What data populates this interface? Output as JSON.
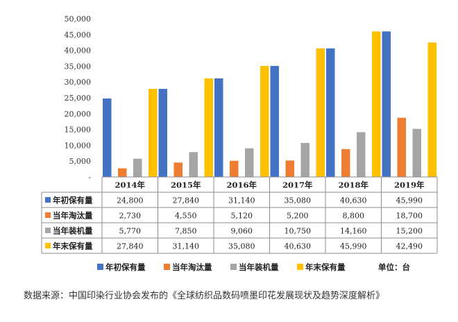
{
  "chart_data": {
    "type": "bar",
    "categories": [
      "2014年",
      "2015年",
      "2016年",
      "2017年",
      "2018年",
      "2019年"
    ],
    "series": [
      {
        "name": "年初保有量",
        "color": "#4472C4",
        "values": [
          24800,
          27840,
          31140,
          35080,
          40630,
          45990
        ],
        "labels": [
          "24,800",
          "27,840",
          "31,140",
          "35,080",
          "40,630",
          "45,990"
        ]
      },
      {
        "name": "当年淘汰量",
        "color": "#ED7D31",
        "values": [
          2730,
          4550,
          5120,
          5200,
          8800,
          18700
        ],
        "labels": [
          "2,730",
          "4,550",
          "5,120",
          "5,200",
          "8,800",
          "18,700"
        ]
      },
      {
        "name": "当年装机量",
        "color": "#A5A5A5",
        "values": [
          5770,
          7850,
          9060,
          10750,
          14160,
          15200
        ],
        "labels": [
          "5,770",
          "7,850",
          "9,060",
          "10,750",
          "14,160",
          "15,200"
        ]
      },
      {
        "name": "年末保有量",
        "color": "#FFC000",
        "values": [
          27840,
          31140,
          35080,
          40630,
          45990,
          42490
        ],
        "labels": [
          "27,840",
          "31,140",
          "35,080",
          "40,630",
          "45,990",
          "42,490"
        ]
      }
    ],
    "ylim": [
      0,
      50000
    ],
    "yticks": [
      "-",
      "5,000",
      "10,000",
      "15,000",
      "20,000",
      "25,000",
      "30,000",
      "35,000",
      "40,000",
      "45,000",
      "50,000"
    ],
    "legend_position": "bottom",
    "unit_label": "单位：台",
    "grid": false
  },
  "source_note": "数据来源：中国印染行业协会发布的《全球纺织品数码喷墨印花发展现状及趋势深度解析》"
}
